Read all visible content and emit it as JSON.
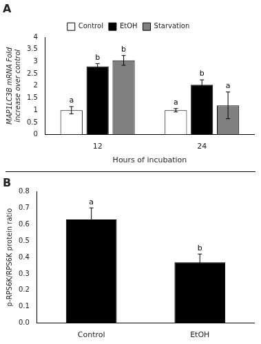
{
  "chart_data": [
    {
      "type": "bar",
      "title": "A",
      "categories": [
        "12",
        "24"
      ],
      "series": [
        {
          "name": "Control",
          "color": "#ffffff",
          "values": [
            1.0,
            1.0
          ],
          "errors": [
            0.15,
            0.07
          ],
          "annotations": [
            "a",
            "a"
          ]
        },
        {
          "name": "EtOH",
          "color": "#000000",
          "values": [
            2.8,
            2.05
          ],
          "errors": [
            0.12,
            0.2
          ],
          "annotations": [
            "b",
            "b"
          ]
        },
        {
          "name": "Starvation",
          "color": "#808080",
          "values": [
            3.05,
            1.2
          ],
          "errors": [
            0.2,
            0.55
          ],
          "annotations": [
            "b",
            "a"
          ]
        }
      ],
      "xlabel": "Hours of incubation",
      "ylabel": "MAP1LC3B mRNA Fold\nincrease over control",
      "ylim": [
        0,
        4
      ],
      "yticks": [
        0,
        0.5,
        1.0,
        1.5,
        2.0,
        2.5,
        3.0,
        3.5,
        4.0
      ],
      "grid": false,
      "legend": "top"
    },
    {
      "type": "bar",
      "title": "B",
      "categories": [
        "Control",
        "EtOH"
      ],
      "series": [
        {
          "color": "#000000",
          "values": [
            0.63,
            0.37
          ],
          "errors": [
            0.07,
            0.05
          ],
          "annotations": [
            "a",
            "b"
          ]
        }
      ],
      "ylabel": "p-RPS6K/RPS6K protein ratio",
      "ylim": [
        0,
        0.8
      ],
      "yticks": [
        {
          "value": 0,
          "label": "0.0"
        },
        0.1,
        0.2,
        0.3,
        0.4,
        0.5,
        0.6,
        0.7,
        0.8
      ],
      "grid": false
    }
  ]
}
